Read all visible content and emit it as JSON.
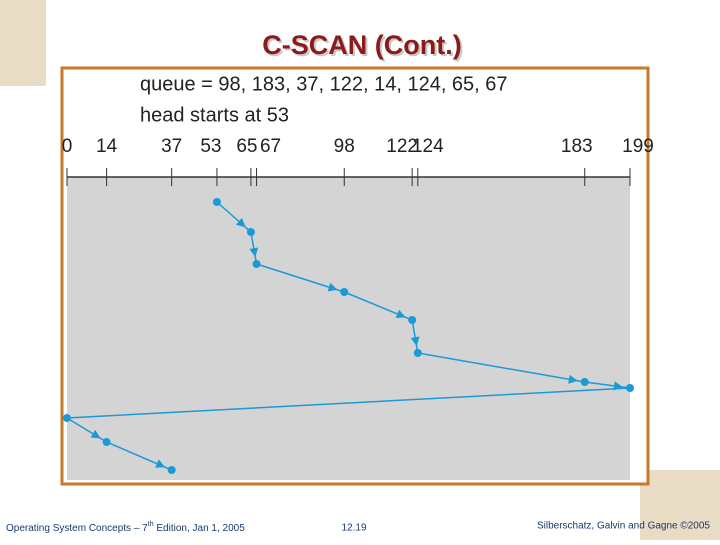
{
  "title": "C-SCAN (Cont.)",
  "figure": {
    "queue_label": "queue = 98, 183, 37, 122, 14, 124, 65, 67",
    "head_label": "head starts at 53",
    "track_range": [
      0,
      199
    ],
    "ticks": [
      0,
      14,
      37,
      53,
      65,
      67,
      98,
      122,
      124,
      183,
      199
    ],
    "service_order": [
      53,
      65,
      67,
      98,
      122,
      124,
      183,
      199,
      0,
      14,
      37
    ],
    "line_color": "#1a9ad6"
  },
  "footer": {
    "left_main": "Operating System Concepts – 7",
    "left_sup": "th",
    "left_rest": " Edition, Jan 1, 2005",
    "center": "12.19",
    "right": "Silberschatz, Galvin and Gagne ©2005"
  }
}
